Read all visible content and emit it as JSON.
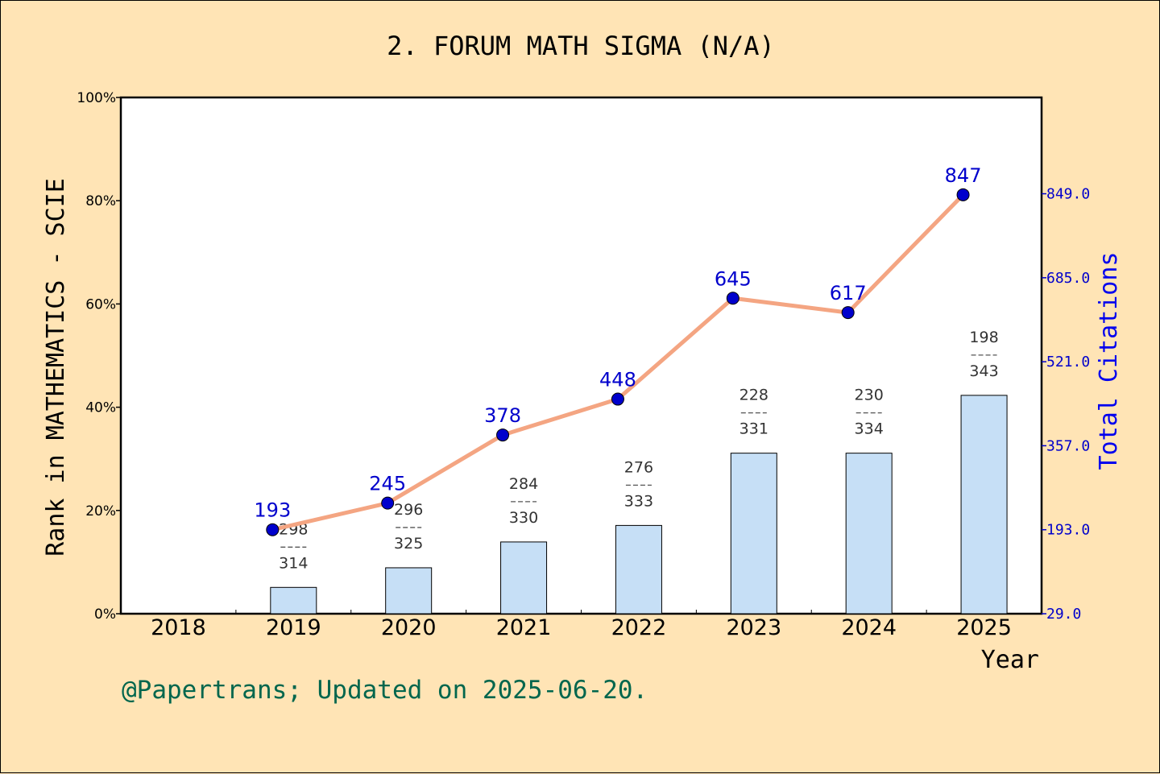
{
  "chart_data": {
    "type": "bar",
    "title": "2. FORUM MATH SIGMA (N/A)",
    "xlabel": "Year",
    "ylabel": "Rank in MATHEMATICS - SCIE",
    "y2label": "Total Citations",
    "categories": [
      "2018",
      "2019",
      "2020",
      "2021",
      "2022",
      "2023",
      "2024",
      "2025"
    ],
    "ylim": [
      0,
      100
    ],
    "yticks": [
      "0%",
      "20%",
      "40%",
      "60%",
      "80%",
      "100%"
    ],
    "y2lim": [
      29,
      1037
    ],
    "y2ticks": [
      "29.0",
      "193.0",
      "357.0",
      "521.0",
      "685.0",
      "849.0"
    ],
    "series": [
      {
        "kind": "bar",
        "values": [
          null,
          5.1,
          8.9,
          13.9,
          17.1,
          31.1,
          31.1,
          42.3
        ],
        "color": "#c6dff6",
        "labels": [
          null,
          {
            "rank": "298",
            "total": "314"
          },
          {
            "rank": "296",
            "total": "325"
          },
          {
            "rank": "284",
            "total": "330"
          },
          {
            "rank": "276",
            "total": "333"
          },
          {
            "rank": "228",
            "total": "331"
          },
          {
            "rank": "230",
            "total": "334"
          },
          {
            "rank": "198",
            "total": "343"
          }
        ]
      },
      {
        "name": "Total Citations",
        "kind": "line",
        "axis": "right",
        "values": [
          null,
          193,
          245,
          378,
          448,
          645,
          617,
          847
        ],
        "line_color": "#f4a582",
        "marker_color": "#0000cc"
      }
    ],
    "grid": false
  },
  "footer": "@Papertrans; Updated on 2025-06-20."
}
